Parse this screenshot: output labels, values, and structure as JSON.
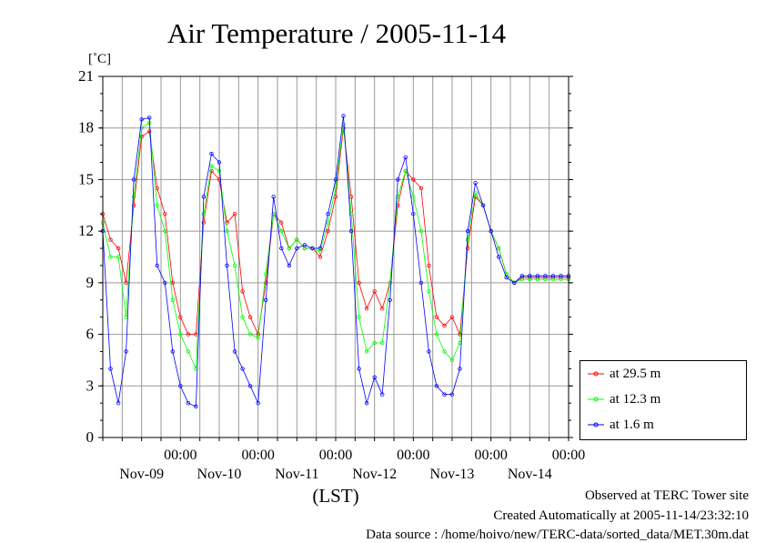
{
  "chart_data": {
    "type": "line",
    "title": "Air Temperature / 2005-11-14",
    "y_unit": "[˚C]",
    "xlabel": "(LST)",
    "ylim": [
      0,
      21
    ],
    "yticks": [
      0,
      3,
      6,
      9,
      12,
      15,
      18,
      21
    ],
    "x_tick_time_label": "00:00",
    "x_day_labels": [
      "Nov-09",
      "Nov-10",
      "Nov-11",
      "Nov-12",
      "Nov-13",
      "Nov-14"
    ],
    "x_range_days": [
      -1.0,
      5.0
    ],
    "x_units": "days since Nov-09 00:00",
    "grid": true,
    "legend_position": "bottom-right",
    "series": [
      {
        "name": "at 29.5 m",
        "color": "#ff0000",
        "x": [
          -1.0,
          -0.9,
          -0.8,
          -0.7,
          -0.6,
          -0.5,
          -0.4,
          -0.3,
          -0.2,
          -0.1,
          0.0,
          0.1,
          0.2,
          0.3,
          0.4,
          0.5,
          0.6,
          0.7,
          0.8,
          0.9,
          1.0,
          1.1,
          1.2,
          1.3,
          1.4,
          1.5,
          1.6,
          1.7,
          1.8,
          1.9,
          2.0,
          2.1,
          2.2,
          2.3,
          2.4,
          2.5,
          2.6,
          2.7,
          2.8,
          2.9,
          3.0,
          3.1,
          3.2,
          3.3,
          3.4,
          3.5,
          3.6,
          3.7,
          3.8,
          3.9,
          4.0,
          4.1,
          4.2,
          4.3,
          4.4,
          4.5,
          4.6,
          4.7,
          4.8,
          4.9,
          5.0
        ],
        "values": [
          13.0,
          11.5,
          11.0,
          9.0,
          13.5,
          17.5,
          17.8,
          14.5,
          13.0,
          9.0,
          7.0,
          6.0,
          6.0,
          12.5,
          15.5,
          15.0,
          12.5,
          13.0,
          8.5,
          7.0,
          6.0,
          9.0,
          13.0,
          12.5,
          11.0,
          11.5,
          11.0,
          11.0,
          10.5,
          12.0,
          14.0,
          18.0,
          14.0,
          9.0,
          7.5,
          8.5,
          7.5,
          9.0,
          13.5,
          15.5,
          15.0,
          14.5,
          10.0,
          7.0,
          6.5,
          7.0,
          6.0,
          11.0,
          14.0,
          13.5,
          12.0,
          11.0,
          9.5,
          9.0,
          9.3,
          9.3,
          9.3,
          9.3,
          9.3,
          9.3,
          9.3
        ]
      },
      {
        "name": "at 12.3 m",
        "color": "#00ff00",
        "x": [
          -1.0,
          -0.9,
          -0.8,
          -0.7,
          -0.6,
          -0.5,
          -0.4,
          -0.3,
          -0.2,
          -0.1,
          0.0,
          0.1,
          0.2,
          0.3,
          0.4,
          0.5,
          0.6,
          0.7,
          0.8,
          0.9,
          1.0,
          1.1,
          1.2,
          1.3,
          1.4,
          1.5,
          1.6,
          1.7,
          1.8,
          1.9,
          2.0,
          2.1,
          2.2,
          2.3,
          2.4,
          2.5,
          2.6,
          2.7,
          2.8,
          2.9,
          3.0,
          3.1,
          3.2,
          3.3,
          3.4,
          3.5,
          3.6,
          3.7,
          3.8,
          3.9,
          4.0,
          4.1,
          4.2,
          4.3,
          4.4,
          4.5,
          4.6,
          4.7,
          4.8,
          4.9,
          5.0
        ],
        "values": [
          12.5,
          10.5,
          10.5,
          7.0,
          14.0,
          18.0,
          18.3,
          13.5,
          12.0,
          8.0,
          6.0,
          5.0,
          4.0,
          13.0,
          15.8,
          15.5,
          12.0,
          10.0,
          7.0,
          6.0,
          5.8,
          9.5,
          13.0,
          12.0,
          11.0,
          11.5,
          11.0,
          11.0,
          10.8,
          12.5,
          14.5,
          18.2,
          13.0,
          7.0,
          5.0,
          5.5,
          5.5,
          9.0,
          14.0,
          15.5,
          14.0,
          12.0,
          8.5,
          6.0,
          5.0,
          4.5,
          5.5,
          11.5,
          14.2,
          13.5,
          12.0,
          11.0,
          9.5,
          9.0,
          9.2,
          9.2,
          9.2,
          9.2,
          9.2,
          9.2,
          9.2
        ]
      },
      {
        "name": "at 1.6 m",
        "color": "#0000ff",
        "x": [
          -1.0,
          -0.9,
          -0.8,
          -0.7,
          -0.6,
          -0.5,
          -0.4,
          -0.3,
          -0.2,
          -0.1,
          0.0,
          0.1,
          0.2,
          0.3,
          0.4,
          0.5,
          0.6,
          0.7,
          0.8,
          0.9,
          1.0,
          1.1,
          1.2,
          1.3,
          1.4,
          1.5,
          1.6,
          1.7,
          1.8,
          1.9,
          2.0,
          2.1,
          2.2,
          2.3,
          2.4,
          2.5,
          2.6,
          2.7,
          2.8,
          2.9,
          3.0,
          3.1,
          3.2,
          3.3,
          3.4,
          3.5,
          3.6,
          3.7,
          3.8,
          3.9,
          4.0,
          4.1,
          4.2,
          4.3,
          4.4,
          4.5,
          4.6,
          4.7,
          4.8,
          4.9,
          5.0
        ],
        "values": [
          12.0,
          4.0,
          2.0,
          5.0,
          15.0,
          18.5,
          18.6,
          10.0,
          9.0,
          5.0,
          3.0,
          2.0,
          1.8,
          14.0,
          16.5,
          16.0,
          10.0,
          5.0,
          4.0,
          3.0,
          2.0,
          8.0,
          14.0,
          11.0,
          10.0,
          11.0,
          11.2,
          11.0,
          11.0,
          13.0,
          15.0,
          18.7,
          12.0,
          4.0,
          2.0,
          3.5,
          2.5,
          8.0,
          15.0,
          16.3,
          13.0,
          9.0,
          5.0,
          3.0,
          2.5,
          2.5,
          4.0,
          12.0,
          14.8,
          13.5,
          12.0,
          10.5,
          9.3,
          9.0,
          9.4,
          9.4,
          9.4,
          9.4,
          9.4,
          9.4,
          9.4
        ]
      }
    ]
  },
  "footer": {
    "observed": "Observed at TERC Tower site",
    "created": "Created Automatically at 2005-11-14/23:32:10",
    "source": "Data source : /home/hoivo/new/TERC-data/sorted_data/MET.30m.dat"
  }
}
